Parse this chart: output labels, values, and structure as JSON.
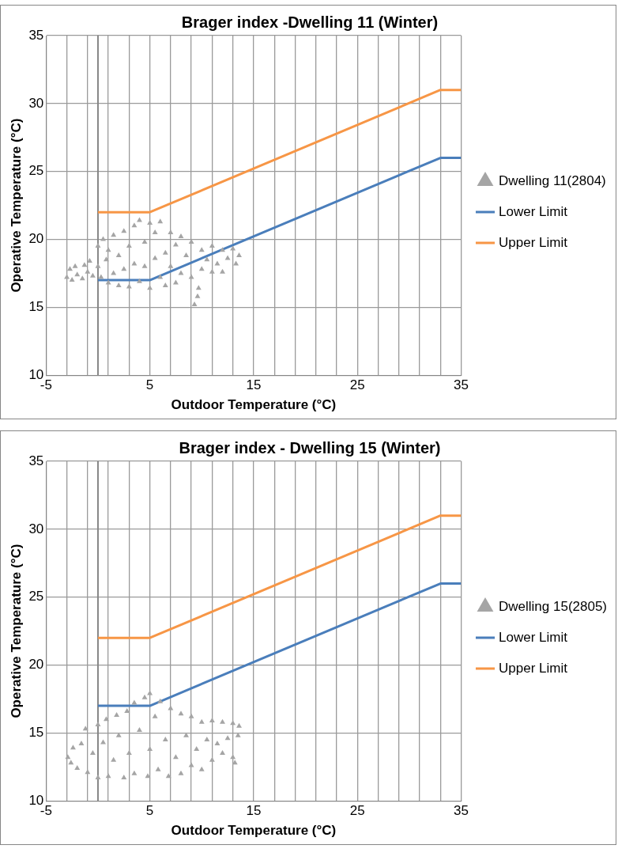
{
  "chart_data": [
    {
      "type": "scatter",
      "title": "Brager index -Dwelling 11 (Winter)",
      "xlabel": "Outdoor Temperature (°C)",
      "ylabel": "Operative Temperature (°C)",
      "xlim": [
        -5,
        35
      ],
      "xticks": [
        -5,
        {
          "value": -3,
          "label": null
        },
        {
          "value": -1,
          "label": null
        },
        {
          "value": 1,
          "label": null
        },
        {
          "value": 3,
          "label": null
        },
        5,
        {
          "value": 7,
          "label": null
        },
        {
          "value": 9,
          "label": null
        },
        {
          "value": 11,
          "label": null
        },
        {
          "value": 13,
          "label": null
        },
        15,
        {
          "value": 17,
          "label": null
        },
        {
          "value": 19,
          "label": null
        },
        {
          "value": 21,
          "label": null
        },
        {
          "value": 23,
          "label": null
        },
        25,
        {
          "value": 27,
          "label": null
        },
        {
          "value": 29,
          "label": null
        },
        {
          "value": 31,
          "label": null
        },
        {
          "value": 33,
          "label": null
        },
        35
      ],
      "ylim": [
        10,
        35
      ],
      "yticks": [
        10,
        15,
        20,
        25,
        30,
        35
      ],
      "grid": true,
      "legend": "right",
      "ref_lines": [
        {
          "axis": "x",
          "value": 0,
          "color": "#868686"
        }
      ],
      "series": [
        {
          "name": "Dwelling 11(2804)",
          "type": "scatter",
          "marker": "triangle",
          "color": "#a5a5a5",
          "x": [
            -3,
            -2.7,
            -2.5,
            -2.2,
            -2,
            -1.5,
            -1.3,
            -1,
            -0.8,
            -0.5,
            0,
            0,
            0.3,
            0.5,
            0.8,
            1,
            1,
            1.5,
            1.5,
            2,
            2,
            2.5,
            2.5,
            3,
            3,
            3.5,
            3.5,
            4,
            4,
            4.5,
            4.5,
            5,
            5,
            5.5,
            5.5,
            6,
            6,
            6.5,
            6.5,
            7,
            7,
            7.5,
            7.5,
            8,
            8,
            8.5,
            9,
            9,
            9.3,
            9.6,
            9.7,
            10,
            10,
            10.5,
            11,
            11,
            11.5,
            12,
            12,
            12.5,
            13,
            13.3,
            13.6
          ],
          "values": [
            17.2,
            17.8,
            17,
            18,
            17.4,
            17.1,
            18.1,
            17.6,
            18.4,
            17.3,
            19.5,
            18,
            17.2,
            20,
            18.5,
            16.8,
            19.2,
            20.3,
            17.5,
            16.6,
            18.8,
            20.6,
            17.8,
            16.5,
            19.5,
            21,
            18.2,
            21.4,
            16.9,
            19.8,
            18,
            21.2,
            16.4,
            20.5,
            18.6,
            21.3,
            17.2,
            19,
            16.6,
            20.5,
            18,
            19.6,
            16.8,
            20.2,
            17.5,
            18.8,
            19.8,
            17.2,
            15.2,
            15.8,
            16.4,
            19.2,
            17.8,
            18.5,
            19.5,
            17.6,
            18.2,
            19.2,
            17.6,
            18.6,
            19.3,
            18.2,
            18.8
          ]
        },
        {
          "name": "Lower Limit",
          "type": "line",
          "marker": "none",
          "color": "#4a7ebb",
          "x": [
            0,
            5,
            33,
            35
          ],
          "values": [
            17,
            17,
            26,
            26
          ]
        },
        {
          "name": "Upper Limit",
          "type": "line",
          "marker": "none",
          "color": "#f79646",
          "x": [
            0,
            5,
            33,
            35
          ],
          "values": [
            22,
            22,
            31,
            31
          ]
        }
      ]
    },
    {
      "type": "scatter",
      "title": "Brager index - Dwelling 15 (Winter)",
      "xlabel": "Outdoor Temperature (°C)",
      "ylabel": "Operative Temperature (°C)",
      "xlim": [
        -5,
        35
      ],
      "xticks": [
        -5,
        {
          "value": -3,
          "label": null
        },
        {
          "value": -1,
          "label": null
        },
        {
          "value": 1,
          "label": null
        },
        {
          "value": 3,
          "label": null
        },
        5,
        {
          "value": 7,
          "label": null
        },
        {
          "value": 9,
          "label": null
        },
        {
          "value": 11,
          "label": null
        },
        {
          "value": 13,
          "label": null
        },
        15,
        {
          "value": 17,
          "label": null
        },
        {
          "value": 19,
          "label": null
        },
        {
          "value": 21,
          "label": null
        },
        {
          "value": 23,
          "label": null
        },
        25,
        {
          "value": 27,
          "label": null
        },
        {
          "value": 29,
          "label": null
        },
        {
          "value": 31,
          "label": null
        },
        {
          "value": 33,
          "label": null
        },
        35
      ],
      "ylim": [
        10,
        35
      ],
      "yticks": [
        10,
        15,
        20,
        25,
        30,
        35
      ],
      "grid": true,
      "legend": "right",
      "ref_lines": [
        {
          "axis": "x",
          "value": 0,
          "color": "#868686"
        }
      ],
      "series": [
        {
          "name": "Dwelling 15(2805)",
          "type": "scatter",
          "marker": "triangle",
          "color": "#a5a5a5",
          "x": [
            -2.9,
            -2.6,
            -2.4,
            -2,
            -1.6,
            -1.2,
            -1,
            -0.5,
            0,
            0,
            0.5,
            0.8,
            1,
            1.5,
            1.8,
            2,
            2.5,
            2.8,
            3,
            3.5,
            3.5,
            4,
            4.5,
            4.8,
            5,
            5,
            5.5,
            5.8,
            6,
            6.5,
            6.8,
            7,
            7.5,
            8,
            8,
            8.5,
            9,
            9,
            9.5,
            10,
            10,
            10.5,
            11,
            11,
            11.5,
            12,
            12,
            12.5,
            13,
            13,
            13.5,
            13.6,
            13.2
          ],
          "values": [
            13.2,
            12.8,
            13.9,
            12.4,
            14.2,
            15.3,
            12.1,
            13.5,
            11.7,
            15.6,
            14.3,
            16,
            11.8,
            13,
            16.3,
            14.8,
            11.7,
            16.6,
            13.5,
            17.2,
            12,
            15.2,
            17.6,
            11.8,
            17.9,
            13.8,
            16.2,
            12.3,
            17.3,
            14.5,
            11.8,
            16.8,
            13.2,
            16.4,
            12,
            14.8,
            16.2,
            12.6,
            13.8,
            15.8,
            12.3,
            14.5,
            15.9,
            13,
            14.2,
            15.8,
            13.5,
            14.6,
            15.7,
            13.2,
            14.8,
            15.5,
            12.8
          ]
        },
        {
          "name": "Lower Limit",
          "type": "line",
          "marker": "none",
          "color": "#4a7ebb",
          "x": [
            0,
            5,
            33,
            35
          ],
          "values": [
            17,
            17,
            26,
            26
          ]
        },
        {
          "name": "Upper Limit",
          "type": "line",
          "marker": "none",
          "color": "#f79646",
          "x": [
            0,
            5,
            33,
            35
          ],
          "values": [
            22,
            22,
            31,
            31
          ]
        }
      ]
    }
  ]
}
